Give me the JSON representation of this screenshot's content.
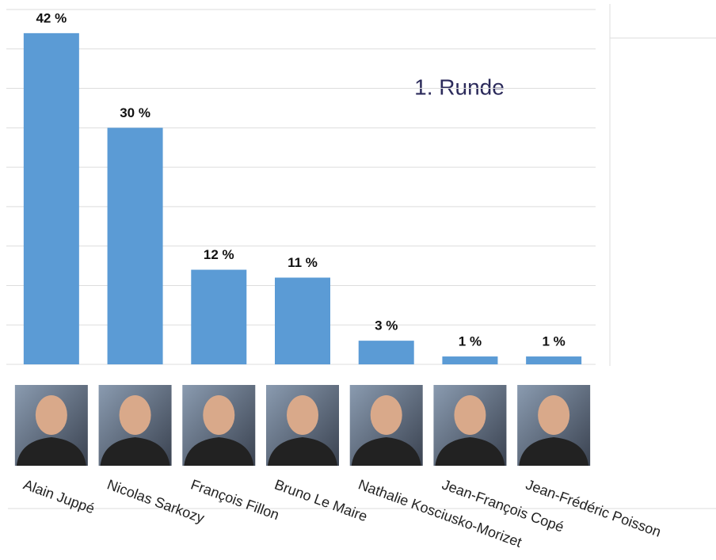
{
  "chart_data": {
    "type": "bar",
    "annotation": "1. Runde",
    "categories": [
      "Alain Juppé",
      "Nicolas Sarkozy",
      "François Fillon",
      "Bruno Le Maire",
      "Nathalie Kosciusko-Morizet",
      "Jean-François Copé",
      "Jean-Frédéric Poisson"
    ],
    "values": [
      42,
      30,
      12,
      11,
      3,
      1,
      1
    ],
    "value_labels": [
      "42 %",
      "30 %",
      "12 %",
      "11 %",
      "3 %",
      "1 %",
      "1 %"
    ],
    "color": "#5b9bd5",
    "ylim": [
      0,
      45
    ],
    "yticks": [
      0,
      5,
      10,
      15,
      20,
      25,
      30,
      35,
      40,
      45
    ],
    "grid": true
  }
}
